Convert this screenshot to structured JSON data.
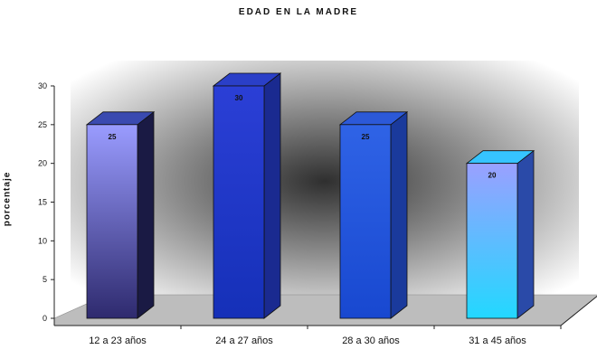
{
  "chart_data": {
    "type": "bar",
    "title": "EDAD EN LA MADRE",
    "xlabel": "",
    "ylabel": "porcentaje",
    "categories": [
      "12 a 23 años",
      "24 a 27 años",
      "28 a 30 años",
      "31 a 45 años"
    ],
    "values": [
      25,
      30,
      25,
      20
    ],
    "data_labels": [
      "25",
      "30",
      "25",
      "20"
    ],
    "ylim": [
      0,
      30
    ],
    "yticks": [
      "0",
      "5",
      "10",
      "15",
      "20",
      "25",
      "30"
    ],
    "bar_colors": [
      {
        "front_top": "#9a9cff",
        "front_bottom": "#2e2a6e",
        "top": "#3a4ab0",
        "side": "#1a1a44"
      },
      {
        "front_top": "#2b3fd6",
        "front_bottom": "#1530b8",
        "top": "#2a3fc8",
        "side": "#1a2a90"
      },
      {
        "front_top": "#2f63e6",
        "front_bottom": "#1848d0",
        "top": "#2c59d8",
        "side": "#1a3a9c"
      },
      {
        "front_top": "#9aa0ff",
        "front_bottom": "#22d8ff",
        "top": "#36c4ff",
        "side": "#2a4aa8"
      }
    ],
    "floor_color": "#bdbdbd",
    "wall_style": "radial-gray-gradient",
    "grid": false
  }
}
